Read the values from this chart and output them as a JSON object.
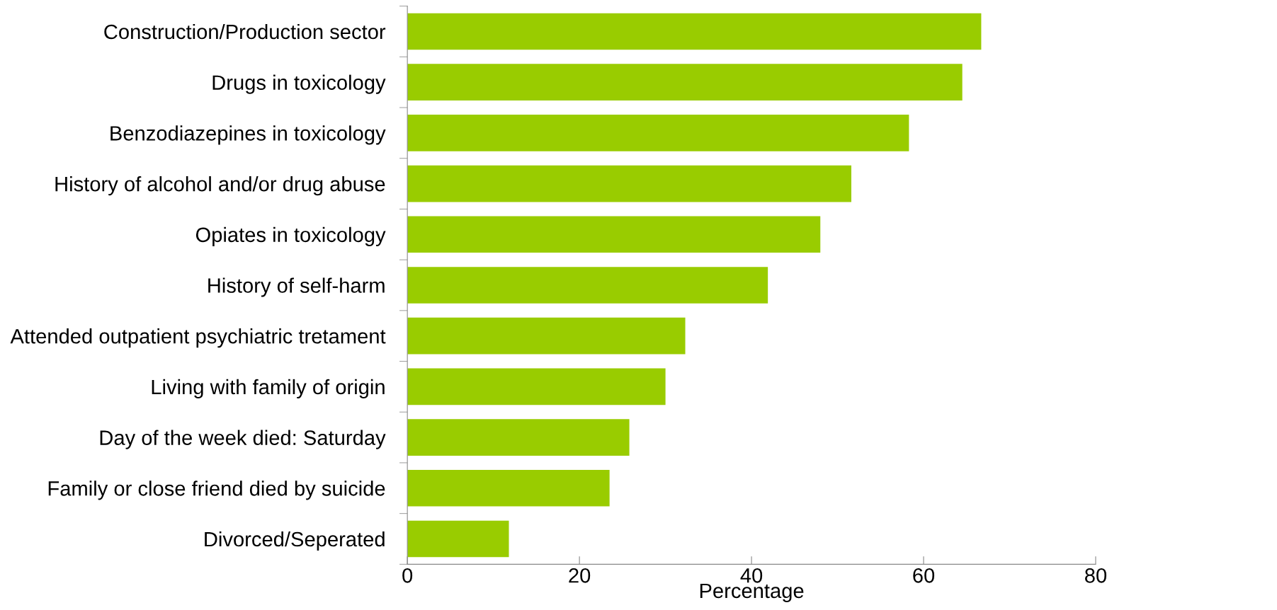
{
  "chart_data": {
    "type": "bar",
    "orientation": "horizontal",
    "xlabel": "Percentage",
    "categories": [
      "Construction/Production sector",
      "Drugs in toxicology",
      "Benzodiazepines in toxicology",
      "History of alcohol and/or drug abuse",
      "Opiates in toxicology",
      "History of self-harm",
      "Attended outpatient psychiatric tretament",
      "Living with family of origin",
      "Day of the week died: Saturday",
      "Family or close friend died by suicide",
      "Divorced/Seperated"
    ],
    "values": [
      66.7,
      64.5,
      58.3,
      51.6,
      48.0,
      41.9,
      32.3,
      30.0,
      25.8,
      23.5,
      11.8
    ],
    "color": "#99cc00",
    "xlim": [
      0,
      80
    ],
    "xticks": [
      0,
      20,
      40,
      60,
      80
    ],
    "grid": false,
    "legend": false
  }
}
